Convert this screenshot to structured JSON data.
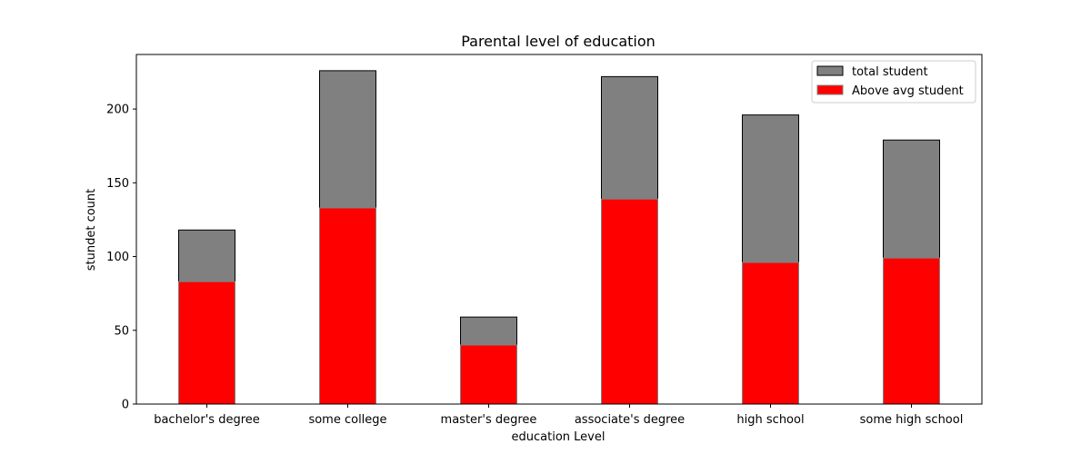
{
  "chart_data": {
    "type": "bar",
    "title": "Parental level of education",
    "xlabel": "education Level",
    "ylabel": "stundet count",
    "categories": [
      "bachelor's degree",
      "some college",
      "master's degree",
      "associate's degree",
      "high school",
      "some high school"
    ],
    "series": [
      {
        "name": "total student",
        "values": [
          118,
          226,
          59,
          222,
          196,
          179
        ],
        "color": "#808080"
      },
      {
        "name": "Above avg student",
        "values": [
          83,
          133,
          40,
          139,
          96,
          99
        ],
        "color": "#ff0000"
      }
    ],
    "ylim": [
      0,
      237
    ],
    "yticks": [
      0,
      50,
      100,
      150,
      200
    ],
    "grid": false,
    "legend_position": "top-right",
    "overlay": true
  }
}
